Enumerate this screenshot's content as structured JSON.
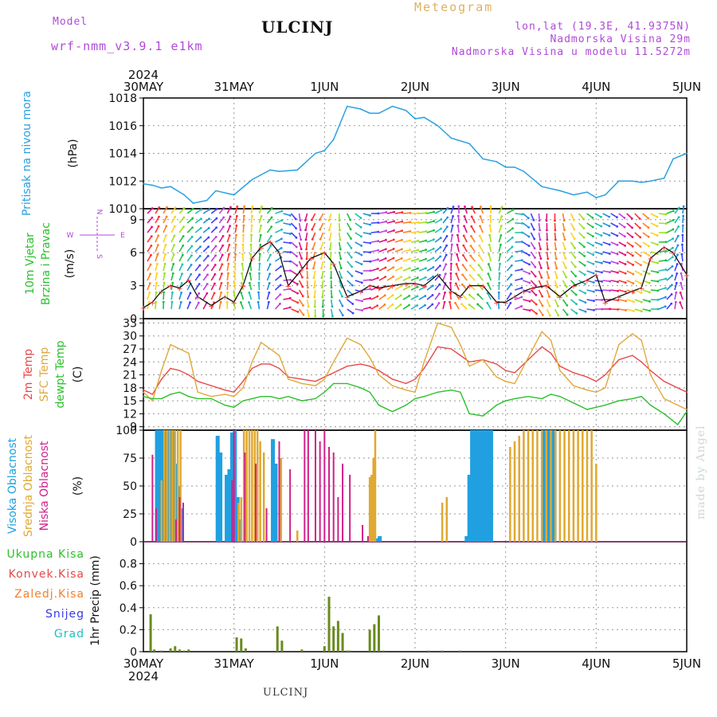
{
  "header": {
    "model_label": "Model",
    "model_name": "wrf-nmm_v3.9.1 e1km",
    "title": "ULCINJ",
    "meteogram": "Meteogram",
    "location_lines": [
      "lon,lat (19.3E, 41.9375N)",
      "Nadmorska Visina 29m",
      "Nadmorska Visina u modelu 11.5272m"
    ],
    "footer": "ULCINJ",
    "credit": "made by Angel"
  },
  "time_axis": {
    "year": "2024",
    "labels": [
      "30MAY",
      "31MAY",
      "1JUN",
      "2JUN",
      "3JUN",
      "4JUN",
      "5JUN"
    ]
  },
  "colors": {
    "pressure": "#2aa0e0",
    "t2m": "#e84848",
    "tsfc": "#e0a83c",
    "dewpt": "#2cc02c",
    "high_cloud": "#20a0e0",
    "mid_cloud": "#e0a830",
    "low_cloud": "#d0208a",
    "precip_total": "#2cc02c",
    "precip_conv": "#e84848",
    "precip_ice": "#f08030",
    "snow": "#3838e8",
    "hail": "#20c0c0"
  },
  "chart_data": [
    {
      "type": "line",
      "panel": "pressure",
      "ylabel_main": "Pritisak na nivou mora",
      "ylabel_unit": "(hPa)",
      "ylim": [
        1010,
        1018
      ],
      "yticks": [
        "1010",
        "1012",
        "1014",
        "1016",
        "1018"
      ],
      "x_days": [
        0,
        0.1,
        0.2,
        0.3,
        0.45,
        0.55,
        0.7,
        0.8,
        1.0,
        1.2,
        1.4,
        1.5,
        1.7,
        1.9,
        2.0,
        2.1,
        2.25,
        2.4,
        2.5,
        2.6,
        2.75,
        2.9,
        3.0,
        3.1,
        3.25,
        3.4,
        3.6,
        3.75,
        3.9,
        4.0,
        4.1,
        4.2,
        4.4,
        4.6,
        4.75,
        4.9,
        5.0,
        5.1,
        5.25,
        5.4,
        5.5,
        5.6,
        5.75,
        5.85,
        6.0
      ],
      "series": [
        {
          "values": [
            1011.8,
            1011.7,
            1011.5,
            1011.6,
            1011.0,
            1010.4,
            1010.6,
            1011.3,
            1011.0,
            1012.1,
            1012.8,
            1012.7,
            1012.8,
            1014.0,
            1014.2,
            1015.0,
            1017.4,
            1017.2,
            1016.9,
            1016.9,
            1017.4,
            1017.1,
            1016.5,
            1016.6,
            1016.0,
            1015.1,
            1014.7,
            1013.6,
            1013.4,
            1013.0,
            1013.0,
            1012.7,
            1011.6,
            1011.3,
            1011.0,
            1011.2,
            1010.8,
            1011.0,
            1012.0,
            1012.0,
            1011.9,
            1012.0,
            1012.2,
            1013.6,
            1014.0
          ]
        }
      ]
    },
    {
      "type": "line",
      "panel": "wind",
      "ylabel_main": "10m Vjetar",
      "ylabel_sub": "Brzina i Pravac",
      "ylabel_unit": "(m/s)",
      "compass": {
        "n": "N",
        "s": "S",
        "e": "E",
        "w": "W"
      },
      "ylim": [
        0,
        10
      ],
      "yticks": [
        "0",
        "3",
        "6",
        "9"
      ],
      "x_days": [
        0,
        0.1,
        0.2,
        0.3,
        0.4,
        0.5,
        0.6,
        0.75,
        0.9,
        1.0,
        1.1,
        1.2,
        1.3,
        1.4,
        1.5,
        1.6,
        1.75,
        1.85,
        2.0,
        2.1,
        2.25,
        2.4,
        2.5,
        2.6,
        2.75,
        2.9,
        3.0,
        3.1,
        3.25,
        3.4,
        3.5,
        3.6,
        3.75,
        3.9,
        4.0,
        4.1,
        4.2,
        4.3,
        4.45,
        4.6,
        4.75,
        4.9,
        5.0,
        5.1,
        5.25,
        5.4,
        5.5,
        5.6,
        5.75,
        5.85,
        6.0
      ],
      "series": [
        {
          "name": "Brzina",
          "values": [
            1.0,
            1.5,
            2.5,
            3.0,
            2.8,
            3.5,
            2.0,
            1.2,
            2.0,
            1.5,
            3.0,
            5.5,
            6.5,
            7.0,
            6.0,
            3.0,
            4.5,
            5.5,
            6.0,
            5.0,
            2.0,
            2.5,
            3.0,
            2.8,
            3.0,
            3.2,
            3.2,
            3.0,
            4.0,
            2.5,
            2.0,
            3.0,
            3.0,
            1.5,
            1.5,
            2.0,
            2.5,
            2.8,
            3.0,
            2.0,
            3.0,
            3.5,
            4.0,
            1.5,
            2.0,
            2.5,
            2.8,
            5.5,
            6.5,
            6.0,
            4.0
          ]
        }
      ]
    },
    {
      "type": "line",
      "panel": "temperature",
      "ylabel_lines": [
        "2m Temp",
        "SFC Temp",
        "dewpt Temp"
      ],
      "ylabel_unit": "(C)",
      "ylim": [
        8.2,
        34
      ],
      "yticks": [
        "9",
        "12",
        "15",
        "18",
        "21",
        "24",
        "27",
        "30",
        "33"
      ],
      "x_days": [
        0,
        0.1,
        0.2,
        0.3,
        0.4,
        0.5,
        0.6,
        0.75,
        0.9,
        1.0,
        1.1,
        1.2,
        1.3,
        1.4,
        1.5,
        1.6,
        1.75,
        1.9,
        2.0,
        2.1,
        2.25,
        2.4,
        2.5,
        2.6,
        2.75,
        2.9,
        3.0,
        3.1,
        3.25,
        3.4,
        3.5,
        3.6,
        3.75,
        3.9,
        4.0,
        4.1,
        4.25,
        4.4,
        4.5,
        4.6,
        4.75,
        4.9,
        5.0,
        5.1,
        5.25,
        5.4,
        5.5,
        5.6,
        5.75,
        5.9,
        6.0
      ],
      "series": [
        {
          "name": "2m Temp",
          "values": [
            17.5,
            16.5,
            20,
            22.5,
            22,
            21,
            19.5,
            18.5,
            17.5,
            17,
            19.5,
            22.5,
            23.5,
            23.5,
            22.5,
            20.5,
            20,
            19.5,
            20.5,
            21.5,
            23,
            23.5,
            23,
            22,
            20,
            19,
            20,
            22.5,
            27.5,
            27,
            25.5,
            24,
            24.5,
            23.5,
            22,
            21.5,
            24.5,
            27.5,
            26,
            23,
            21.5,
            20.5,
            19.5,
            21,
            24.5,
            25.5,
            24,
            22,
            19.5,
            18,
            17
          ]
        },
        {
          "name": "SFC Temp",
          "values": [
            17,
            15,
            22,
            28,
            27,
            26,
            17,
            16,
            16.5,
            16,
            18,
            24,
            28.5,
            27,
            25.5,
            20,
            19,
            18.5,
            20,
            24,
            29.5,
            28,
            25,
            21,
            18.5,
            17.5,
            17,
            24,
            33,
            32,
            28,
            23,
            24.5,
            20.5,
            19.5,
            19,
            25,
            31,
            29,
            22,
            18.5,
            17.5,
            17,
            18,
            28,
            30.5,
            29,
            21,
            15.5,
            14,
            13
          ]
        },
        {
          "name": "dewpt Temp",
          "values": [
            16,
            15.5,
            15.5,
            16.5,
            17,
            16,
            15.5,
            15.5,
            14,
            13.5,
            15,
            15.5,
            16,
            16,
            15.5,
            16,
            15,
            15.5,
            17,
            19,
            19,
            18,
            17,
            14,
            12.5,
            14,
            15.5,
            16,
            17,
            17.5,
            17,
            12,
            11.5,
            14,
            15,
            15.5,
            16,
            15.5,
            16.5,
            16,
            14.5,
            13,
            13.5,
            14,
            15,
            15.5,
            16,
            14,
            12,
            9.5,
            12.5
          ]
        }
      ]
    },
    {
      "type": "bar",
      "panel": "clouds",
      "ylabel_lines": [
        "Visoka Oblacnost",
        "Srednja Oblacnost",
        "Niska Oblacnost"
      ],
      "ylabel_unit": "(%)",
      "ylim": [
        0,
        100
      ],
      "yticks": [
        "0",
        "25",
        "50",
        "75",
        "100"
      ],
      "series": [
        {
          "name": "Visoka Oblacnost",
          "x_days": [
            0.15,
            0.18,
            0.21,
            0.24,
            0.27,
            0.3,
            0.33,
            0.36,
            0.39,
            0.42,
            0.82,
            0.85,
            0.92,
            0.95,
            0.98,
            1.01,
            1.04,
            1.07,
            1.43,
            1.46,
            2.58,
            2.61,
            3.57,
            3.6,
            3.63,
            3.66,
            3.69,
            3.72,
            3.75,
            3.78,
            3.81,
            3.84,
            4.42,
            4.45,
            4.48,
            4.51,
            4.54
          ],
          "values": [
            100,
            100,
            100,
            100,
            100,
            100,
            100,
            70,
            50,
            30,
            95,
            80,
            60,
            65,
            98,
            100,
            40,
            20,
            92,
            70,
            3,
            5,
            5,
            60,
            100,
            100,
            100,
            100,
            100,
            100,
            100,
            100,
            100,
            100,
            100,
            100,
            100
          ]
        },
        {
          "name": "Srednja Oblacnost",
          "x_days": [
            0.2,
            0.23,
            0.26,
            0.29,
            0.32,
            0.35,
            0.38,
            0.41,
            1.05,
            1.08,
            1.11,
            1.14,
            1.17,
            1.2,
            1.23,
            1.26,
            1.29,
            1.33,
            1.52,
            1.7,
            2.5,
            2.52,
            2.54,
            2.56,
            3.3,
            3.35,
            4.05,
            4.1,
            4.15,
            4.2,
            4.25,
            4.3,
            4.35,
            4.4,
            4.45,
            4.5,
            4.55,
            4.6,
            4.65,
            4.7,
            4.75,
            4.8,
            4.85,
            4.9,
            4.95,
            5.0
          ],
          "values": [
            55,
            100,
            100,
            100,
            100,
            100,
            100,
            100,
            35,
            40,
            100,
            100,
            100,
            100,
            100,
            100,
            90,
            80,
            75,
            10,
            58,
            60,
            75,
            100,
            35,
            40,
            85,
            90,
            95,
            100,
            100,
            100,
            100,
            100,
            100,
            100,
            100,
            100,
            100,
            100,
            100,
            100,
            100,
            100,
            100,
            70
          ]
        },
        {
          "name": "Niska Oblacnost",
          "x_days": [
            0.1,
            0.14,
            0.36,
            0.4,
            0.44,
            0.98,
            1.0,
            1.12,
            1.24,
            1.36,
            1.5,
            1.62,
            1.78,
            1.82,
            1.9,
            1.95,
            2.0,
            2.05,
            2.1,
            2.15,
            2.2,
            2.28,
            2.42,
            2.48
          ],
          "values": [
            78,
            30,
            20,
            40,
            35,
            55,
            100,
            80,
            70,
            30,
            90,
            65,
            100,
            100,
            100,
            90,
            100,
            85,
            80,
            40,
            70,
            60,
            15,
            5
          ]
        }
      ]
    },
    {
      "type": "bar",
      "panel": "precip",
      "legend": [
        "Ukupna Kisa",
        "Konvek.Kisa",
        "Zaledj.Kisa",
        "Snijeg",
        "Grad"
      ],
      "ylabel_unit": "1hr Precip (mm)",
      "ylim": [
        0,
        1.0
      ],
      "yticks": [
        "0",
        "0.2",
        "0.4",
        "0.6",
        "0.8"
      ],
      "x_days": [
        0.08,
        0.12,
        0.2,
        0.3,
        0.35,
        0.4,
        0.45,
        0.5,
        1.03,
        1.08,
        1.13,
        1.48,
        1.53,
        1.75,
        2.0,
        2.05,
        2.1,
        2.15,
        2.2,
        2.25,
        2.28,
        2.5,
        2.55,
        2.6,
        2.65,
        3.15,
        3.3,
        3.5
      ],
      "values": [
        0.34,
        0.02,
        0.01,
        0.03,
        0.05,
        0.02,
        0.01,
        0.02,
        0.13,
        0.12,
        0.03,
        0.23,
        0.1,
        0.02,
        0.05,
        0.5,
        0.23,
        0.28,
        0.17,
        0.01,
        0.01,
        0.2,
        0.25,
        0.33,
        0.01,
        0.01,
        0.01,
        0.01
      ]
    }
  ]
}
